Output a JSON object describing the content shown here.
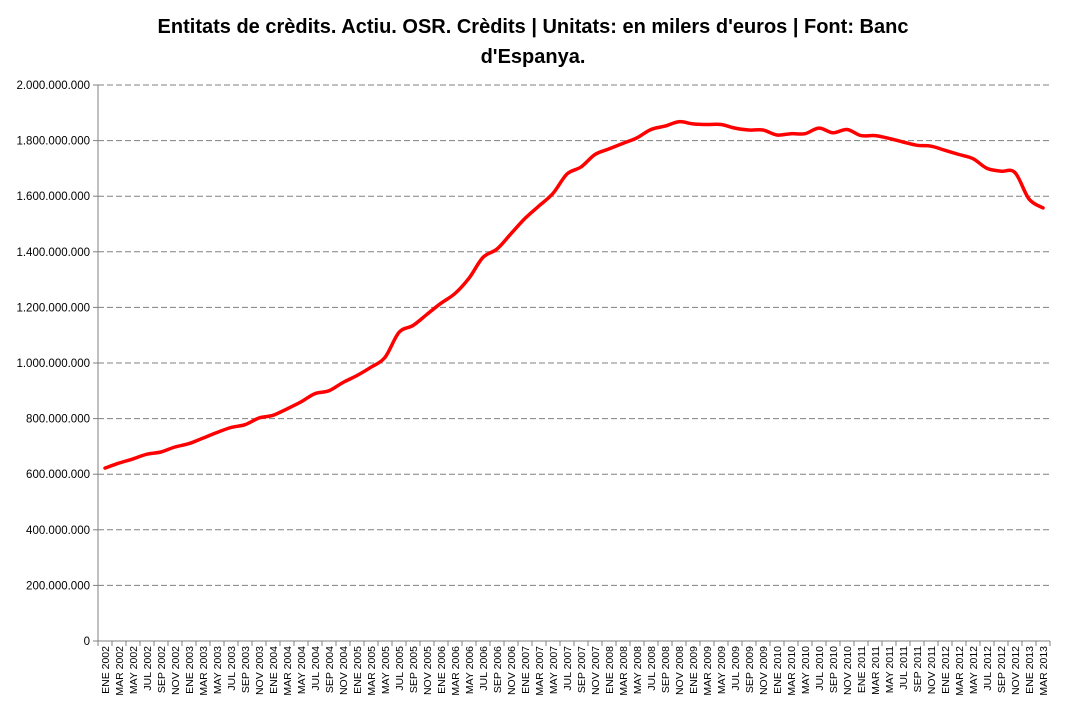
{
  "chart_data": {
    "type": "line",
    "title_lines": [
      "Entitats de crèdits. Actiu. OSR. Crèdits  |  Unitats: en milers d'euros | Font: Banc",
      "d'Espanya."
    ],
    "xlabel": "",
    "ylabel": "",
    "ylim": [
      0,
      2000000000
    ],
    "yticks": [
      0,
      200000000,
      400000000,
      600000000,
      800000000,
      1000000000,
      1200000000,
      1400000000,
      1600000000,
      1800000000,
      2000000000
    ],
    "ytick_labels": [
      "0",
      "200.000.000",
      "400.000.000",
      "600.000.000",
      "800.000.000",
      "1.000.000.000",
      "1.200.000.000",
      "1.400.000.000",
      "1.600.000.000",
      "1.800.000.000",
      "2.000.000.000"
    ],
    "grid": "horizontal-dashed",
    "legend": "none",
    "line_color": "#ff0000",
    "x_tick_labels": [
      "ENE 2002",
      "MAR 2002",
      "MAY 2002",
      "JUL 2002",
      "SEP 2002",
      "NOV 2002",
      "ENE 2003",
      "MAR 2003",
      "MAY 2003",
      "JUL 2003",
      "SEP 2003",
      "NOV 2003",
      "ENE 2004",
      "MAR 2004",
      "MAY 2004",
      "JUL 2004",
      "SEP 2004",
      "NOV 2004",
      "ENE 2005",
      "MAR 2005",
      "MAY 2005",
      "JUL 2005",
      "SEP 2005",
      "NOV 2005",
      "ENE 2006",
      "MAR 2006",
      "MAY 2006",
      "JUL 2006",
      "SEP 2006",
      "NOV 2006",
      "ENE 2007",
      "MAR 2007",
      "MAY 2007",
      "JUL 2007",
      "SEP 2007",
      "NOV 2007",
      "ENE 2008",
      "MAR 2008",
      "MAY 2008",
      "JUL 2008",
      "SEP 2008",
      "NOV 2008",
      "ENE 2009",
      "MAR 2009",
      "MAY 2009",
      "JUL 2009",
      "SEP 2009",
      "NOV 2009",
      "ENE 2010",
      "MAR 2010",
      "MAY 2010",
      "JUL 2010",
      "SEP 2010",
      "NOV 2010",
      "ENE 2011",
      "MAR 2011",
      "MAY 2011",
      "JUL 2011",
      "SEP 2011",
      "NOV 2011",
      "ENE 2012",
      "MAR 2012",
      "MAY 2012",
      "JUL 2012",
      "SEP 2012",
      "NOV 2012",
      "ENE 2013",
      "MAR 2013"
    ],
    "series": [
      {
        "points": [
          [
            "ENE 2002",
            622000000
          ],
          [
            "MAR 2002",
            640000000
          ],
          [
            "MAY 2002",
            655000000
          ],
          [
            "JUL 2002",
            672000000
          ],
          [
            "SEP 2002",
            680000000
          ],
          [
            "NOV 2002",
            698000000
          ],
          [
            "ENE 2003",
            710000000
          ],
          [
            "MAR 2003",
            730000000
          ],
          [
            "MAY 2003",
            750000000
          ],
          [
            "JUL 2003",
            768000000
          ],
          [
            "SEP 2003",
            778000000
          ],
          [
            "NOV 2003",
            802000000
          ],
          [
            "ENE 2004",
            812000000
          ],
          [
            "MAR 2004",
            835000000
          ],
          [
            "MAY 2004",
            860000000
          ],
          [
            "JUL 2004",
            890000000
          ],
          [
            "SEP 2004",
            900000000
          ],
          [
            "NOV 2004",
            930000000
          ],
          [
            "ENE 2005",
            955000000
          ],
          [
            "MAR 2005",
            985000000
          ],
          [
            "MAY 2005",
            1020000000
          ],
          [
            "JUL 2005",
            1110000000
          ],
          [
            "SEP 2005",
            1135000000
          ],
          [
            "NOV 2005",
            1175000000
          ],
          [
            "ENE 2006",
            1215000000
          ],
          [
            "MAR 2006",
            1250000000
          ],
          [
            "MAY 2006",
            1305000000
          ],
          [
            "JUL 2006",
            1380000000
          ],
          [
            "SEP 2006",
            1410000000
          ],
          [
            "NOV 2006",
            1465000000
          ],
          [
            "ENE 2007",
            1520000000
          ],
          [
            "MAR 2007",
            1565000000
          ],
          [
            "MAY 2007",
            1610000000
          ],
          [
            "JUL 2007",
            1680000000
          ],
          [
            "SEP 2007",
            1705000000
          ],
          [
            "NOV 2007",
            1750000000
          ],
          [
            "ENE 2008",
            1770000000
          ],
          [
            "MAR 2008",
            1790000000
          ],
          [
            "MAY 2008",
            1810000000
          ],
          [
            "JUL 2008",
            1840000000
          ],
          [
            "SEP 2008",
            1852000000
          ],
          [
            "NOV 2008",
            1868000000
          ],
          [
            "ENE 2009",
            1860000000
          ],
          [
            "MAR 2009",
            1858000000
          ],
          [
            "MAY 2009",
            1858000000
          ],
          [
            "JUL 2009",
            1845000000
          ],
          [
            "SEP 2009",
            1838000000
          ],
          [
            "NOV 2009",
            1838000000
          ],
          [
            "ENE 2010",
            1820000000
          ],
          [
            "MAR 2010",
            1825000000
          ],
          [
            "MAY 2010",
            1825000000
          ],
          [
            "JUL 2010",
            1845000000
          ],
          [
            "SEP 2010",
            1828000000
          ],
          [
            "NOV 2010",
            1840000000
          ],
          [
            "ENE 2011",
            1818000000
          ],
          [
            "MAR 2011",
            1818000000
          ],
          [
            "MAY 2011",
            1808000000
          ],
          [
            "JUL 2011",
            1795000000
          ],
          [
            "SEP 2011",
            1783000000
          ],
          [
            "NOV 2011",
            1780000000
          ],
          [
            "ENE 2012",
            1765000000
          ],
          [
            "MAR 2012",
            1750000000
          ],
          [
            "MAY 2012",
            1735000000
          ],
          [
            "JUL 2012",
            1700000000
          ],
          [
            "SEP 2012",
            1690000000
          ],
          [
            "NOV 2012",
            1685000000
          ],
          [
            "ENE 2013",
            1590000000
          ],
          [
            "MAR 2013",
            1558000000
          ]
        ]
      }
    ]
  }
}
